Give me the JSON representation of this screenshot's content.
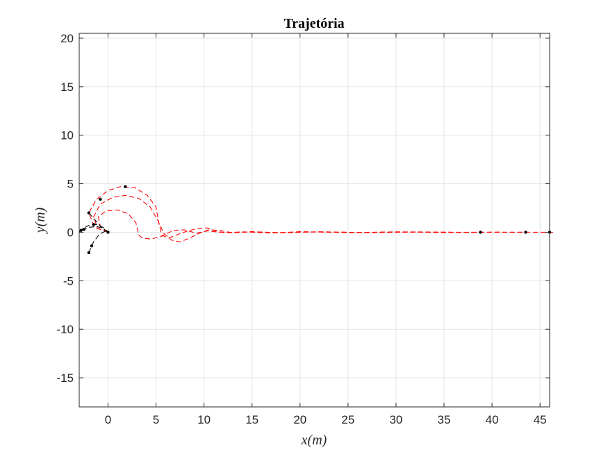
{
  "chart_data": {
    "type": "line",
    "title": "Trajetória",
    "xlabel": "x(m)",
    "ylabel": "y(m)",
    "xlim": [
      -3,
      46
    ],
    "ylim": [
      -18,
      20.5
    ],
    "xticks": [
      0,
      5,
      10,
      15,
      20,
      25,
      30,
      35,
      40,
      45
    ],
    "yticks": [
      20,
      15,
      10,
      5,
      0,
      -5,
      -10,
      -15
    ],
    "xtick_labels": [
      "0",
      "5",
      "10",
      "15",
      "20",
      "25",
      "30",
      "35",
      "40",
      "45"
    ],
    "ytick_labels": [
      "20",
      "15",
      "10",
      "5",
      "0",
      "-5",
      "-10",
      "-15"
    ],
    "grid": true,
    "colors": {
      "red": "#ff0000",
      "black": "#000000",
      "axis": "#262626",
      "grid": "#e3e3e3"
    },
    "series": [
      {
        "color": "#ff0000",
        "x": [
          0,
          -1.4,
          -2.0,
          -1.2,
          0,
          1.3,
          2.8,
          4.1,
          5.0,
          5.3,
          5.6,
          6.3,
          7.2,
          8.2,
          9.3,
          10.3,
          11.2,
          12.2,
          14,
          17,
          20,
          25,
          30,
          35,
          40,
          46.5
        ],
        "y": [
          0,
          0.5,
          2.0,
          3.4,
          4.3,
          4.7,
          4.6,
          3.8,
          2.6,
          0.9,
          -0.3,
          -0.6,
          -0.25,
          0.1,
          0.4,
          0.45,
          0.15,
          -0.05,
          0.05,
          -0.08,
          0.06,
          -0.04,
          0.05,
          -0.03,
          0.02,
          0
        ]
      },
      {
        "color": "#ff0000",
        "x": [
          0,
          -1.1,
          -1.5,
          -0.8,
          0.5,
          1.8,
          3.2,
          4.4,
          5.2,
          5.8,
          6.6,
          7.5,
          8.5,
          9.5,
          10.5,
          11.5,
          13,
          15,
          18,
          22,
          27,
          32,
          37,
          43.5
        ],
        "y": [
          0,
          0.4,
          1.6,
          2.9,
          3.6,
          3.8,
          3.5,
          2.6,
          1.2,
          -0.1,
          -0.8,
          -1.0,
          -0.6,
          -0.1,
          0.25,
          0.2,
          -0.05,
          0.06,
          -0.06,
          0.05,
          -0.04,
          0.04,
          -0.02,
          0
        ]
      },
      {
        "color": "#ff0000",
        "x": [
          0,
          -0.8,
          -1.0,
          -0.2,
          1.0,
          2.1,
          2.9,
          3.2,
          3.6,
          4.5,
          5.6,
          6.8,
          8.0,
          9.2,
          10.4,
          11.6,
          13,
          15,
          18,
          22,
          27,
          32,
          38.8
        ],
        "y": [
          0,
          0.6,
          1.6,
          2.2,
          2.3,
          1.9,
          1.0,
          -0.3,
          -0.6,
          -0.7,
          -0.4,
          0.2,
          0.25,
          -0.1,
          0.15,
          0.0,
          -0.05,
          0.05,
          -0.04,
          0.04,
          -0.03,
          0.02,
          0
        ]
      },
      {
        "color": "#000000",
        "x": [
          -3,
          -2.6,
          -2.0,
          -1.2,
          -0.5,
          0
        ],
        "y": [
          0,
          0.4,
          0.7,
          0.8,
          0.5,
          0
        ]
      },
      {
        "color": "#000000",
        "x": [
          -2.0,
          -1.5,
          -0.9,
          -0.3,
          0
        ],
        "y": [
          -2.1,
          -1.0,
          -0.2,
          0.1,
          0
        ]
      },
      {
        "color": "#000000",
        "x": [
          -2.0,
          -1.3,
          -0.6,
          0
        ],
        "y": [
          2.0,
          1.2,
          0.4,
          0
        ]
      },
      {
        "color": "#000000",
        "x": [
          -2.7,
          -2.0,
          -1.2,
          -0.5,
          0
        ],
        "y": [
          0.2,
          0.5,
          0.6,
          0.4,
          0
        ]
      }
    ],
    "markers": {
      "x": [
        0,
        -2.0,
        -1.5,
        -0.8,
        1.8,
        -2.0,
        -1.7,
        -2.5,
        -2.8,
        38.8,
        43.5,
        46.0
      ],
      "y": [
        0,
        2.0,
        0.8,
        3.4,
        4.7,
        -2.1,
        -1.4,
        0.3,
        0.2,
        0,
        0,
        0
      ]
    }
  }
}
